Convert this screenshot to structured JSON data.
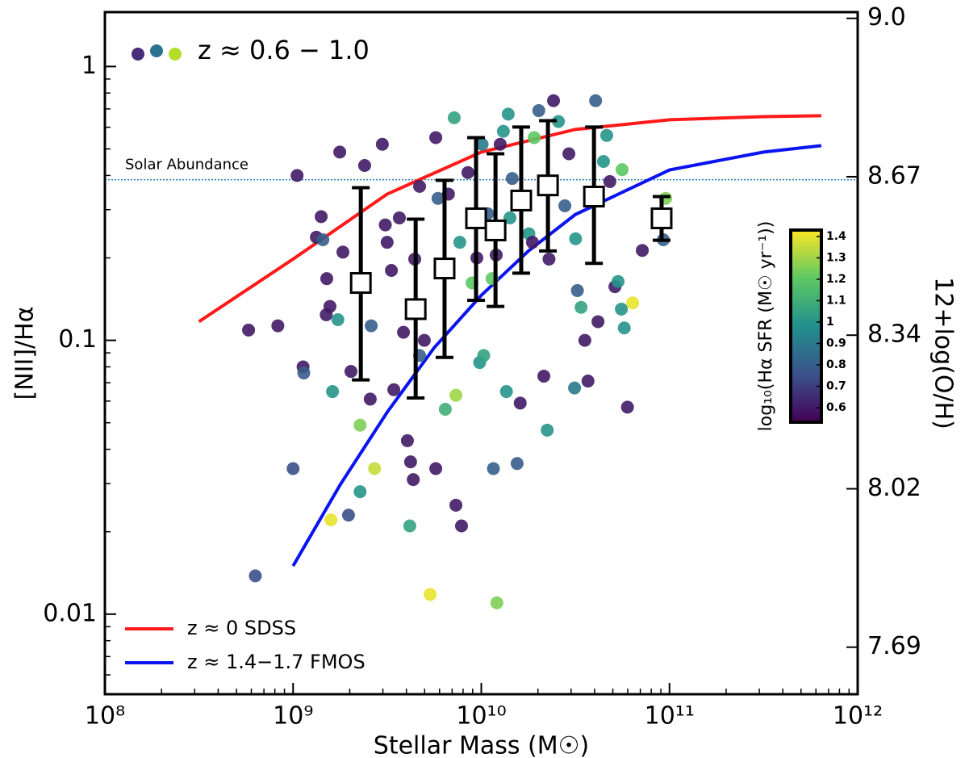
{
  "chart_data": {
    "type": "scatter",
    "xlabel": "Stellar Mass (M☉)",
    "ylabel": "[NII]/Hα",
    "y2label": "12+log(O/H)",
    "xscale": "log",
    "yscale": "log",
    "xlim": [
      100000000,
      1000000000000
    ],
    "ylim": [
      0.0051,
      1.58
    ],
    "y2lim": [
      7.592,
      9.013
    ],
    "xticks": [
      {
        "value": 100000000,
        "label": "10⁸"
      },
      {
        "value": 1000000000,
        "label": "10⁹"
      },
      {
        "value": 10000000000,
        "label": "10¹⁰"
      },
      {
        "value": 100000000000,
        "label": "10¹¹"
      },
      {
        "value": 1000000000000,
        "label": "10¹²"
      }
    ],
    "yticks": [
      0.01,
      0.1,
      1
    ],
    "y2ticks": [
      {
        "value": 9,
        "label": "9.0"
      },
      8.67,
      8.34,
      8.02,
      7.69
    ],
    "points": {
      "name": "z ≈ 0.6 − 1.0",
      "marker_colors": [
        "#472d7b",
        "#2c728e",
        "#b5de2b"
      ],
      "x": [
        580000000.0,
        630000000.0,
        830000000.0,
        1000000000.0,
        1050000000.0,
        1130000000.0,
        1140000000.0,
        1330000000.0,
        1410000000.0,
        1440000000.0,
        1510000000.0,
        1500000000.0,
        1570000000.0,
        1620000000.0,
        1590000000.0,
        1730000000.0,
        1770000000.0,
        1840000000.0,
        1970000000.0,
        2030000000.0,
        2270000000.0,
        2270000000.0,
        2400000000.0,
        2570000000.0,
        2710000000.0,
        2600000000.0,
        2980000000.0,
        3090000000.0,
        3160000000.0,
        3330000000.0,
        3430000000.0,
        3670000000.0,
        3860000000.0,
        4050000000.0,
        4210000000.0,
        4170000000.0,
        4350000000.0,
        4430000000.0,
        4700000000.0,
        4700000000.0,
        4980000000.0,
        5350000000.0,
        5730000000.0,
        5730000000.0,
        5890000000.0,
        6440000000.0,
        6690000000.0,
        7330000000.0,
        7850000000.0,
        7330000000.0,
        7180000000.0,
        7690000000.0,
        8490000000.0,
        8930000000.0,
        9470000000.0,
        9800000000.0,
        10300000000.0,
        10100000000.0,
        10800000000.0,
        11400000000.0,
        11600000000.0,
        12000000000.0,
        12100000000.0,
        12600000000.0,
        13100000000.0,
        13900000000.0,
        13600000000.0,
        14200000000.0,
        14600000000.0,
        15500000000.0,
        16100000000.0,
        17000000000.0,
        17900000000.0,
        18700000000.0,
        19100000000.0,
        20200000000.0,
        21500000000.0,
        22400000000.0,
        22900000000.0,
        24200000000.0,
        25700000000.0,
        27800000000.0,
        29200000000.0,
        31300000000.0,
        31700000000.0,
        32400000000.0,
        33900000000.0,
        35500000000.0,
        36900000000.0,
        40500000000.0,
        41700000000.0,
        44600000000.0,
        46400000000.0,
        48200000000.0,
        51300000000.0,
        53300000000.0,
        55500000000.0,
        57500000000.0,
        59800000000.0,
        63700000000.0,
        56000000000.0,
        71700000000.0,
        92700000000.0,
        95400000000.0
      ],
      "values": [
        0.109,
        0.0138,
        0.113,
        0.034,
        0.4,
        0.08,
        0.076,
        0.238,
        0.283,
        0.233,
        0.168,
        0.124,
        0.133,
        0.065,
        0.0221,
        0.119,
        0.487,
        0.21,
        0.023,
        0.077,
        0.049,
        0.028,
        0.435,
        0.061,
        0.034,
        0.113,
        0.52,
        0.264,
        0.228,
        0.18,
        0.066,
        0.28,
        0.107,
        0.043,
        0.036,
        0.021,
        0.031,
        0.198,
        0.365,
        0.088,
        0.1,
        0.0118,
        0.034,
        0.55,
        0.33,
        0.056,
        0.342,
        0.025,
        0.021,
        0.063,
        0.65,
        0.228,
        0.41,
        0.162,
        0.2,
        0.083,
        0.088,
        0.52,
        0.29,
        0.168,
        0.034,
        0.205,
        0.011,
        0.52,
        0.58,
        0.67,
        0.065,
        0.28,
        0.39,
        0.0355,
        0.059,
        0.33,
        0.245,
        0.228,
        0.55,
        0.69,
        0.074,
        0.047,
        0.198,
        0.75,
        0.63,
        0.31,
        0.48,
        0.067,
        0.235,
        0.152,
        0.132,
        0.1,
        0.071,
        0.75,
        0.117,
        0.45,
        0.56,
        0.38,
        0.157,
        0.164,
        0.13,
        0.111,
        0.057,
        0.137,
        0.42,
        0.213,
        0.233,
        0.33
      ],
      "sfr": [
        0.6,
        0.75,
        0.6,
        0.75,
        0.6,
        0.6,
        0.8,
        0.6,
        0.6,
        0.8,
        0.6,
        0.6,
        0.6,
        1.0,
        1.4,
        1.0,
        0.6,
        0.6,
        0.75,
        0.6,
        1.25,
        1.0,
        0.6,
        0.6,
        1.35,
        0.8,
        0.6,
        0.6,
        0.6,
        0.6,
        0.6,
        0.6,
        0.6,
        0.6,
        0.6,
        1.05,
        0.6,
        0.6,
        0.6,
        0.8,
        0.6,
        1.4,
        0.6,
        0.6,
        0.8,
        1.1,
        0.6,
        0.6,
        0.6,
        1.3,
        1.05,
        1.0,
        0.6,
        1.2,
        0.6,
        1.0,
        1.05,
        0.9,
        0.8,
        1.2,
        0.8,
        0.6,
        1.25,
        0.6,
        1.0,
        1.0,
        1.0,
        1.0,
        0.8,
        0.8,
        0.6,
        1.2,
        1.0,
        0.6,
        1.2,
        0.8,
        0.6,
        1.0,
        0.6,
        0.6,
        1.0,
        0.8,
        0.6,
        0.9,
        1.0,
        0.8,
        1.05,
        0.6,
        0.6,
        0.8,
        0.6,
        1.0,
        1.0,
        0.6,
        0.6,
        1.0,
        1.0,
        1.0,
        0.6,
        1.4,
        1.2,
        0.6,
        0.8,
        1.25
      ]
    },
    "medians": {
      "x": [
        2290000000.0,
        4480000000.0,
        6380000000.0,
        9380000000.0,
        11900000000.0,
        16300000000.0,
        22600000000.0,
        39700000000.0,
        90800000000.0
      ],
      "values": [
        0.162,
        0.13,
        0.183,
        0.279,
        0.252,
        0.324,
        0.368,
        0.335,
        0.279
      ],
      "lower": [
        0.0717,
        0.0616,
        0.0866,
        0.14,
        0.133,
        0.176,
        0.212,
        0.191,
        0.232
      ],
      "upper": [
        0.361,
        0.277,
        0.384,
        0.55,
        0.48,
        0.601,
        0.634,
        0.601,
        0.335
      ]
    },
    "lines": [
      {
        "name": "z ≈ 0 SDSS",
        "color": "#ff1a1a",
        "x": [
          316000000.0,
          1000000000.0,
          3160000000.0,
          10000000000.0,
          31600000000.0,
          100000000000.0,
          316000000000.0,
          641000000000.0
        ],
        "values": [
          0.117,
          0.198,
          0.342,
          0.487,
          0.589,
          0.639,
          0.656,
          0.661
        ]
      },
      {
        "name": "z ≈ 1.4−1.7 FMOS",
        "color": "#0a14f0",
        "x": [
          1000000000.0,
          1780000000.0,
          3160000000.0,
          5620000000.0,
          10000000000.0,
          17800000000.0,
          31600000000.0,
          100000000000.0,
          316000000000.0,
          641000000000.0
        ],
        "values": [
          0.015,
          0.0297,
          0.0546,
          0.094,
          0.146,
          0.212,
          0.288,
          0.419,
          0.487,
          0.514
        ]
      }
    ],
    "hline": {
      "label": "Solar Abundance",
      "value": 0.386,
      "color": "#1f77b4"
    },
    "colorbar": {
      "label": "log₁₀(Hα SFR (M☉ yr⁻¹))",
      "clim": [
        0.532,
        1.43
      ],
      "ticks": [
        0.6,
        0.7,
        0.8,
        0.9,
        1.0,
        1.1,
        1.2,
        1.3,
        1.4
      ],
      "colormap": [
        "#440154",
        "#3b528b",
        "#21908d",
        "#5dc963",
        "#fde725"
      ]
    }
  }
}
